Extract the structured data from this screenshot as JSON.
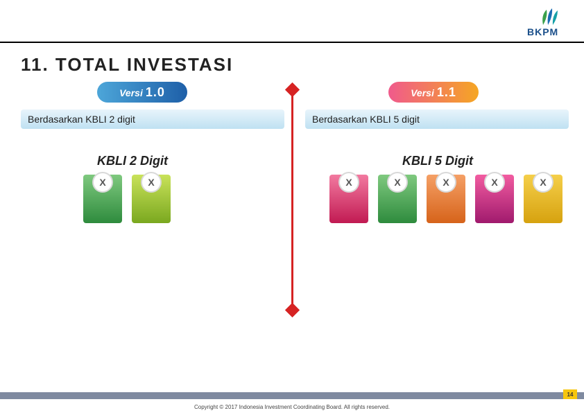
{
  "brand": {
    "name": "BKPM",
    "leaf_colors": [
      "#3aa04a",
      "#1a6db2",
      "#16a0a7"
    ]
  },
  "title": "11. TOTAL INVESTASI",
  "hr_color": "#000000",
  "versions": {
    "left": {
      "label_prefix": "Versi",
      "number": "1.0",
      "bg_gradient": [
        "#4da6d9",
        "#1e5fa8"
      ]
    },
    "right": {
      "label_prefix": "Versi",
      "number": "1.1",
      "bg_gradient": [
        "#f05a8c",
        "#f5a623"
      ]
    }
  },
  "descriptions": {
    "left": {
      "text": "Berdasarkan KBLI 2 digit",
      "band_gradient": [
        "#e8f4fb",
        "#bfe1f2"
      ]
    },
    "right": {
      "text": "Berdasarkan KBLI 5 digit",
      "band_gradient": [
        "#e8f4fb",
        "#bfe1f2"
      ]
    }
  },
  "divider_color": "#d62323",
  "subheads": {
    "left": "KBLI 2 Digit",
    "right": "KBLI 5 Digit"
  },
  "tiles": {
    "bubble_label": "X",
    "left_colors": [
      {
        "top": "#7fc97f",
        "bottom": "#2e8b3d"
      },
      {
        "top": "#c9e25a",
        "bottom": "#7aa81f"
      }
    ],
    "right_colors": [
      {
        "top": "#f27aa0",
        "bottom": "#c11a52"
      },
      {
        "top": "#7fc97f",
        "bottom": "#2e8b3d"
      },
      {
        "top": "#f5a066",
        "bottom": "#d6631a"
      },
      {
        "top": "#f25ca1",
        "bottom": "#a01a6d"
      },
      {
        "top": "#f5cf4a",
        "bottom": "#d6a20f"
      }
    ]
  },
  "footer": {
    "bar_color": "#7f8aa0",
    "page_number": "14",
    "page_badge_bg": "#f6c60e",
    "copyright": "Copyright © 2017 Indonesia Investment Coordinating Board. All rights reserved."
  }
}
